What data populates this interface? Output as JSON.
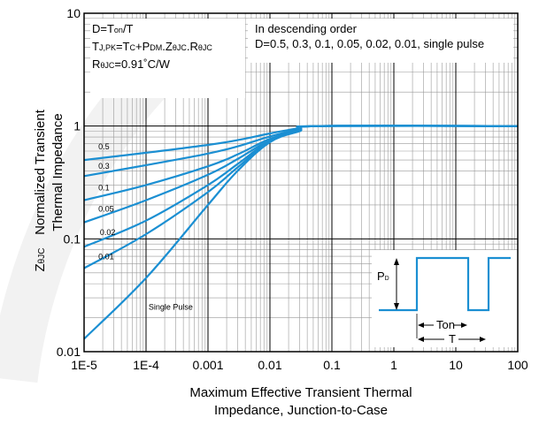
{
  "chart_data": {
    "type": "line",
    "xscale": "log",
    "yscale": "log",
    "xlim": [
      1e-05,
      100
    ],
    "ylim": [
      0.01,
      10
    ],
    "grid": true,
    "xlabel": [
      "Maximum Effective Transient Thermal",
      "Impedance, Junction-to-Case"
    ],
    "ylabel": [
      "Normalized  Transient",
      "Thermal Impedance"
    ],
    "ylabel_prefix": "Z",
    "ylabel_prefix_sub": "θJC",
    "x_ticks": [
      {
        "value": 1e-05,
        "label": "1E-5"
      },
      {
        "value": 0.0001,
        "label": "1E-4"
      },
      {
        "value": 0.001,
        "label": "0.001"
      },
      {
        "value": 0.01,
        "label": "0.01"
      },
      {
        "value": 0.1,
        "label": "0.1"
      },
      {
        "value": 1,
        "label": "1"
      },
      {
        "value": 10,
        "label": "10"
      },
      {
        "value": 100,
        "label": "100"
      }
    ],
    "y_ticks": [
      {
        "value": 0.01,
        "label": "0.01"
      },
      {
        "value": 0.1,
        "label": "0.1"
      },
      {
        "value": 1,
        "label": "1"
      },
      {
        "value": 10,
        "label": "10"
      }
    ],
    "annotation_left": [
      {
        "parts": [
          {
            "t": "D=T"
          },
          {
            "t": "on",
            "sub": true
          },
          {
            "t": "/T"
          }
        ]
      },
      {
        "parts": [
          {
            "t": "T"
          },
          {
            "t": "J,PK",
            "sub": true
          },
          {
            "t": "=T"
          },
          {
            "t": "C",
            "sub": true
          },
          {
            "t": "+P"
          },
          {
            "t": "DM",
            "sub": true
          },
          {
            "t": ".Z"
          },
          {
            "t": "θJC",
            "sub": true
          },
          {
            "t": ".R"
          },
          {
            "t": "θJC",
            "sub": true
          }
        ]
      },
      {
        "parts": [
          {
            "t": "R"
          },
          {
            "t": "θJC",
            "sub": true
          },
          {
            "t": "=0.91˚C/W"
          }
        ]
      }
    ],
    "annotation_right": [
      "In descending order",
      "D=0.5, 0.3, 0.1, 0.05, 0.02, 0.01, single pulse"
    ],
    "series": [
      {
        "name": "0.5",
        "x": [
          1e-05,
          0.0001,
          0.001,
          0.003,
          0.01,
          0.03,
          0.06,
          100
        ],
        "y": [
          0.5,
          0.58,
          0.68,
          0.75,
          0.86,
          0.96,
          1.0,
          1.0
        ]
      },
      {
        "name": "0.3",
        "x": [
          1e-05,
          0.0001,
          0.001,
          0.003,
          0.01,
          0.03,
          0.06,
          100
        ],
        "y": [
          0.36,
          0.45,
          0.57,
          0.66,
          0.81,
          0.94,
          1.0,
          1.0
        ]
      },
      {
        "name": "0.1",
        "x": [
          1e-05,
          0.0001,
          0.001,
          0.003,
          0.01,
          0.03,
          0.06,
          100
        ],
        "y": [
          0.22,
          0.3,
          0.44,
          0.56,
          0.77,
          0.92,
          1.0,
          1.0
        ]
      },
      {
        "name": "0.05",
        "x": [
          1e-05,
          0.0001,
          0.001,
          0.003,
          0.01,
          0.03,
          0.06,
          100
        ],
        "y": [
          0.14,
          0.22,
          0.37,
          0.51,
          0.75,
          0.91,
          1.0,
          1.0
        ]
      },
      {
        "name": "0.02",
        "x": [
          1e-05,
          0.0001,
          0.001,
          0.003,
          0.01,
          0.03,
          0.06,
          100
        ],
        "y": [
          0.085,
          0.145,
          0.3,
          0.46,
          0.74,
          0.91,
          1.0,
          1.0
        ]
      },
      {
        "name": "0.01",
        "x": [
          1e-05,
          0.0001,
          0.001,
          0.003,
          0.01,
          0.03,
          0.06,
          100
        ],
        "y": [
          0.055,
          0.11,
          0.26,
          0.43,
          0.73,
          0.9,
          1.0,
          1.0
        ]
      },
      {
        "name": "Single Pulse",
        "x": [
          1e-05,
          0.0001,
          0.001,
          0.003,
          0.01,
          0.03,
          0.06,
          100
        ],
        "y": [
          0.013,
          0.045,
          0.2,
          0.4,
          0.72,
          0.9,
          1.0,
          1.0
        ]
      }
    ],
    "curve_labels": [
      {
        "text": "0.5",
        "x": 1.7e-05,
        "y": 0.62
      },
      {
        "text": "0.3",
        "x": 1.7e-05,
        "y": 0.42
      },
      {
        "text": "0.1",
        "x": 1.7e-05,
        "y": 0.27
      },
      {
        "text": "0.05",
        "x": 1.7e-05,
        "y": 0.175
      },
      {
        "text": "0.02",
        "x": 1.8e-05,
        "y": 0.108
      },
      {
        "text": "0.01",
        "x": 1.7e-05,
        "y": 0.066
      },
      {
        "text": "Single Pulse",
        "x": 0.00011,
        "y": 0.0235
      }
    ],
    "colors": {
      "curve": "#1b8fd2",
      "grid": "#999999",
      "major_grid": "#000000"
    },
    "inset_labels": {
      "pd": "P",
      "pd_sub": "D",
      "ton": "Ton",
      "t": "T"
    }
  }
}
